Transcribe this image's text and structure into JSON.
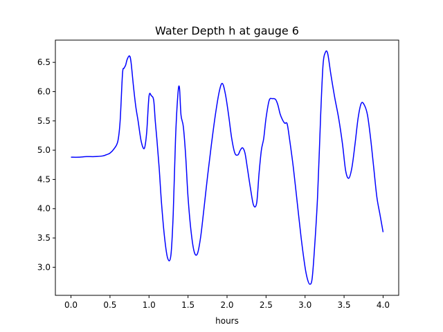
{
  "chart_data": {
    "type": "line",
    "title": "Water Depth h at gauge 6",
    "xlabel": "hours",
    "ylabel": "",
    "xlim": [
      -0.2,
      4.2
    ],
    "ylim": [
      2.52,
      6.88
    ],
    "grid": false,
    "x_ticks": [
      0.0,
      0.5,
      1.0,
      1.5,
      2.0,
      2.5,
      3.0,
      3.5,
      4.0
    ],
    "x_tick_labels": [
      "0.0",
      "0.5",
      "1.0",
      "1.5",
      "2.0",
      "2.5",
      "3.0",
      "3.5",
      "4.0"
    ],
    "y_ticks": [
      3.0,
      3.5,
      4.0,
      4.5,
      5.0,
      5.5,
      6.0,
      6.5
    ],
    "y_tick_labels": [
      "3.0",
      "3.5",
      "4.0",
      "4.5",
      "5.0",
      "5.5",
      "6.0",
      "6.5"
    ],
    "series": [
      {
        "color": "#0000ff",
        "x": [
          0.0,
          0.1,
          0.2,
          0.3,
          0.4,
          0.45,
          0.5,
          0.55,
          0.6,
          0.63,
          0.66,
          0.68,
          0.7,
          0.72,
          0.75,
          0.77,
          0.8,
          0.83,
          0.86,
          0.9,
          0.94,
          0.97,
          1.0,
          1.03,
          1.06,
          1.08,
          1.1,
          1.13,
          1.16,
          1.2,
          1.24,
          1.28,
          1.31,
          1.34,
          1.37,
          1.39,
          1.41,
          1.44,
          1.47,
          1.5,
          1.54,
          1.58,
          1.62,
          1.66,
          1.7,
          1.75,
          1.8,
          1.85,
          1.9,
          1.94,
          1.98,
          2.02,
          2.06,
          2.1,
          2.14,
          2.17,
          2.2,
          2.23,
          2.26,
          2.3,
          2.34,
          2.38,
          2.41,
          2.44,
          2.47,
          2.5,
          2.54,
          2.58,
          2.62,
          2.65,
          2.68,
          2.71,
          2.74,
          2.77,
          2.8,
          2.85,
          2.9,
          2.95,
          3.0,
          3.03,
          3.06,
          3.09,
          3.12,
          3.16,
          3.2,
          3.23,
          3.26,
          3.29,
          3.33,
          3.38,
          3.43,
          3.48,
          3.52,
          3.56,
          3.6,
          3.64,
          3.68,
          3.72,
          3.76,
          3.8,
          3.84,
          3.88,
          3.92,
          3.96,
          4.0
        ],
        "y": [
          4.88,
          4.88,
          4.89,
          4.89,
          4.9,
          4.92,
          4.95,
          5.02,
          5.15,
          5.5,
          6.3,
          6.4,
          6.45,
          6.55,
          6.61,
          6.5,
          6.1,
          5.75,
          5.5,
          5.15,
          5.03,
          5.3,
          5.92,
          5.93,
          5.85,
          5.5,
          5.2,
          4.7,
          4.1,
          3.5,
          3.15,
          3.2,
          3.9,
          5.2,
          5.95,
          6.07,
          5.6,
          5.4,
          4.9,
          4.2,
          3.6,
          3.26,
          3.23,
          3.5,
          3.95,
          4.55,
          5.1,
          5.6,
          6.0,
          6.14,
          5.95,
          5.6,
          5.2,
          4.95,
          4.92,
          5.0,
          5.04,
          4.95,
          4.7,
          4.35,
          4.06,
          4.1,
          4.6,
          5.0,
          5.2,
          5.55,
          5.85,
          5.88,
          5.87,
          5.78,
          5.62,
          5.52,
          5.46,
          5.45,
          5.2,
          4.7,
          4.1,
          3.5,
          3.0,
          2.8,
          2.71,
          2.8,
          3.3,
          4.2,
          5.6,
          6.45,
          6.67,
          6.65,
          6.3,
          5.9,
          5.55,
          5.1,
          4.65,
          4.52,
          4.7,
          5.1,
          5.55,
          5.8,
          5.77,
          5.6,
          5.2,
          4.7,
          4.2,
          3.9,
          3.6
        ]
      }
    ]
  }
}
